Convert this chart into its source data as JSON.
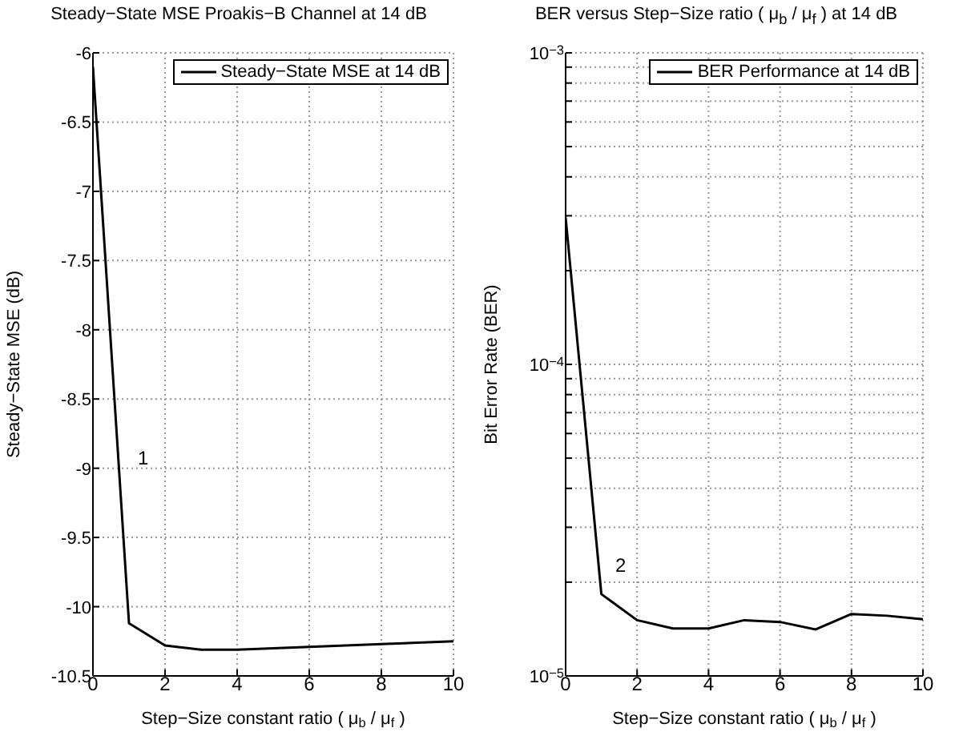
{
  "chart_data": [
    {
      "type": "line",
      "title": "Steady−State MSE Proakis−B Channel at 14 dB",
      "xlabel": "Step−Size constant ratio ( μ$_{b}$ / μ$_{f}$ )",
      "ylabel": "Steady−State MSE (dB)",
      "x": [
        0,
        1,
        2,
        3,
        4,
        5,
        6,
        7,
        8,
        9,
        10
      ],
      "series": [
        {
          "name": "Steady−State MSE at 14 dB",
          "color": "#000000",
          "values": [
            -6.1,
            -10.12,
            -10.28,
            -10.31,
            -10.31,
            -10.3,
            -10.29,
            -10.28,
            -10.27,
            -10.26,
            -10.25
          ]
        }
      ],
      "xlim": [
        0,
        10
      ],
      "xticks": [
        0,
        2,
        4,
        6,
        8,
        10
      ],
      "ylim": [
        -10.5,
        -6
      ],
      "yticks": [
        -10.5,
        -10,
        -9.5,
        -9,
        -8.5,
        -8,
        -7.5,
        -7,
        -6.5,
        -6
      ],
      "annotations": [
        "1"
      ],
      "grid": true,
      "legend": "top right",
      "marker": "none",
      "line_style": "solid"
    },
    {
      "type": "line",
      "title": "BER versus Step−Size ratio  ( μ$_{b}$ / μ$_{f}$ ) at 14 dB",
      "xlabel": "Step−Size constant ratio ( μ$_{b}$ / μ$_{f}$ )",
      "ylabel": "Bit Error Rate (BER)",
      "x": [
        0,
        1,
        2,
        3,
        4,
        5,
        6,
        7,
        8,
        9,
        10
      ],
      "series": [
        {
          "name": "BER Performance at 14 dB",
          "color": "#000000",
          "values": [
            0.000296,
            1.83e-05,
            1.51e-05,
            1.42e-05,
            1.42e-05,
            1.51e-05,
            1.49e-05,
            1.41e-05,
            1.58e-05,
            1.56e-05,
            1.52e-05
          ]
        }
      ],
      "xlim": [
        0,
        10
      ],
      "xticks": [
        0,
        2,
        4,
        6,
        8,
        10
      ],
      "ylim": [
        1e-05,
        0.001
      ],
      "yticks": [
        {
          "value": 1e-05,
          "label": "10$^{−5}$"
        },
        {
          "value": 2e-05,
          "label": null
        },
        {
          "value": 3e-05,
          "label": null
        },
        {
          "value": 4e-05,
          "label": null
        },
        {
          "value": 5e-05,
          "label": null
        },
        {
          "value": 6e-05,
          "label": null
        },
        {
          "value": 7e-05,
          "label": null
        },
        {
          "value": 8e-05,
          "label": null
        },
        {
          "value": 9e-05,
          "label": null
        },
        {
          "value": 0.0001,
          "label": "10$^{−4}$"
        },
        {
          "value": 0.0002,
          "label": null
        },
        {
          "value": 0.0003,
          "label": null
        },
        {
          "value": 0.0004,
          "label": null
        },
        {
          "value": 0.0005,
          "label": null
        },
        {
          "value": 0.0006,
          "label": null
        },
        {
          "value": 0.0007,
          "label": null
        },
        {
          "value": 0.0008,
          "label": null
        },
        {
          "value": 0.0009,
          "label": null
        },
        {
          "value": 0.001,
          "label": "10$^{−3}$"
        }
      ],
      "annotations": [
        "2"
      ],
      "log": "y",
      "grid": true,
      "legend": "top right",
      "marker": "none",
      "line_style": "solid"
    }
  ]
}
